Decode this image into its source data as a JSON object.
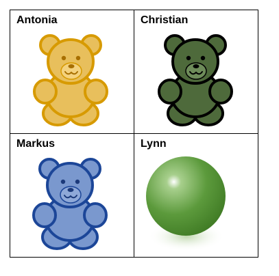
{
  "cells": [
    {
      "name": "Antonia",
      "icon": "teddy-bear",
      "fill": "#E8BF5C",
      "stroke": "#D79A00",
      "face": "#F4D27E",
      "feature": "#A86F00"
    },
    {
      "name": "Christian",
      "icon": "teddy-bear",
      "fill": "#4E6A3B",
      "stroke": "#000000",
      "face": "#6E8C5A",
      "feature": "#000000"
    },
    {
      "name": "Markus",
      "icon": "teddy-bear",
      "fill": "#7A98CE",
      "stroke": "#1C4698",
      "face": "#8FA9D8",
      "feature": "#1C3A7A"
    },
    {
      "name": "Lynn",
      "icon": "green-sphere",
      "fill": "#5C9A3C",
      "highlight": "#FFFFFF",
      "shadow": "#3F7A24"
    }
  ]
}
